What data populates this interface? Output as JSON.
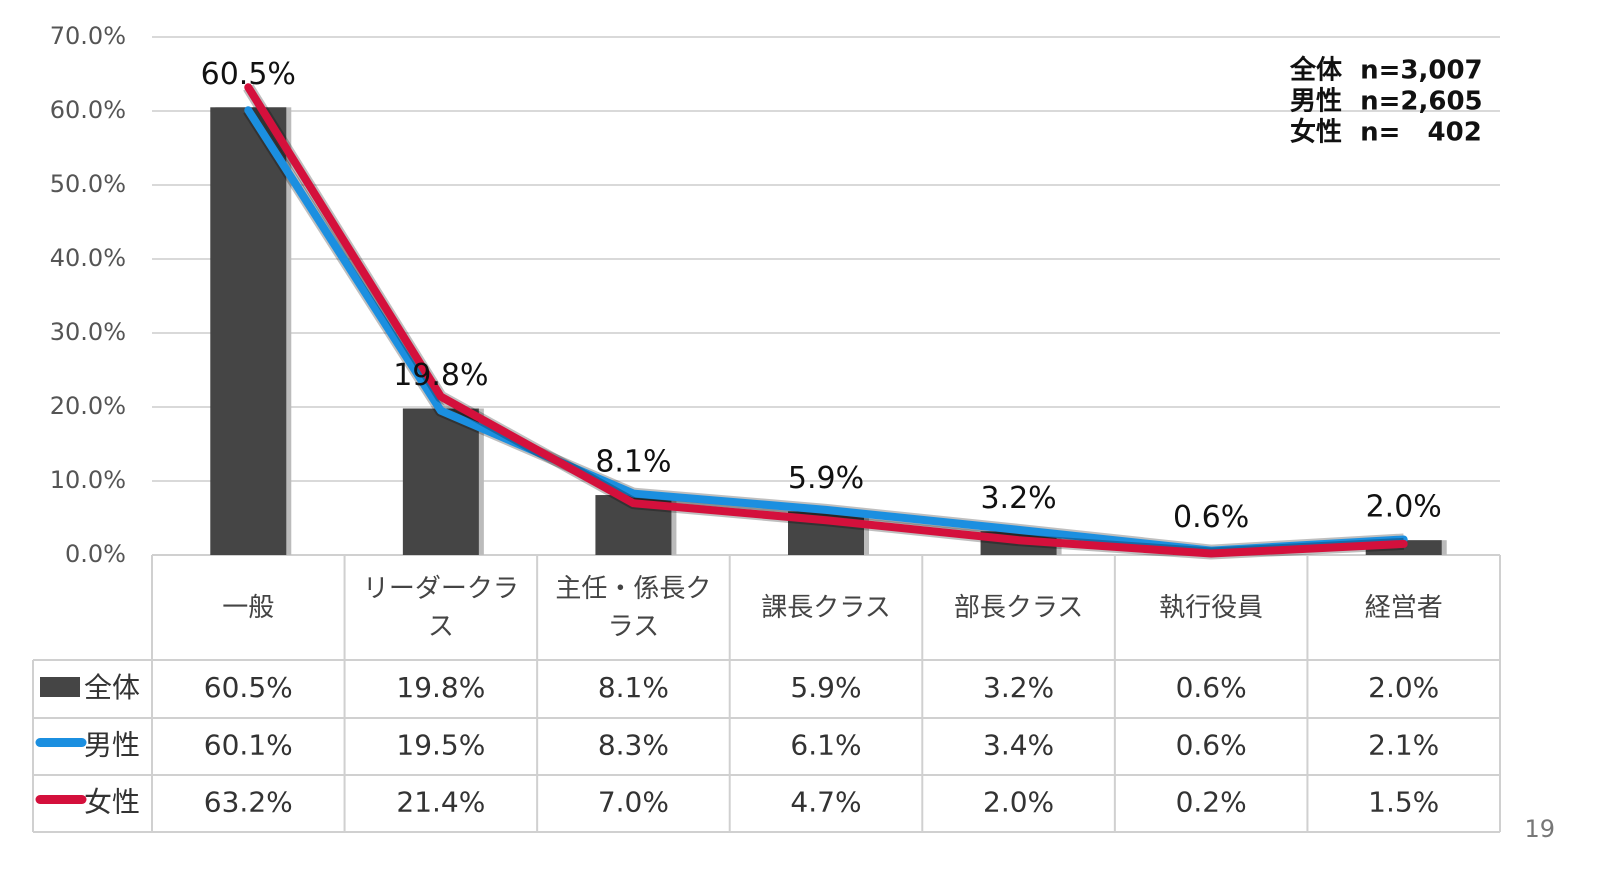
{
  "chart_data": {
    "type": "bar_line_table",
    "categories": [
      "一般",
      "リーダークラス",
      "主任・係長クラス",
      "課長クラス",
      "部長クラス",
      "執行役員",
      "経営者"
    ],
    "series": [
      {
        "name": "全体",
        "type": "bar",
        "color": "#454545",
        "values": [
          60.5,
          19.8,
          8.1,
          5.9,
          3.2,
          0.6,
          2.0
        ],
        "value_labels": [
          "60.5%",
          "19.8%",
          "8.1%",
          "5.9%",
          "3.2%",
          "0.6%",
          "2.0%"
        ]
      },
      {
        "name": "男性",
        "type": "line",
        "color": "#1b8fe0",
        "values": [
          60.1,
          19.5,
          8.3,
          6.1,
          3.4,
          0.6,
          2.1
        ],
        "value_labels": [
          "60.1%",
          "19.5%",
          "8.3%",
          "6.1%",
          "3.4%",
          "0.6%",
          "2.1%"
        ]
      },
      {
        "name": "女性",
        "type": "line",
        "color": "#d4103c",
        "values": [
          63.2,
          21.4,
          7.0,
          4.7,
          2.0,
          0.2,
          1.5
        ],
        "value_labels": [
          "63.2%",
          "21.4%",
          "7.0%",
          "4.7%",
          "2.0%",
          "0.2%",
          "1.5%"
        ]
      }
    ],
    "ylim": [
      0,
      70
    ],
    "yticks": [
      {
        "value": 0,
        "label": "0.0%"
      },
      {
        "value": 10,
        "label": "10.0%"
      },
      {
        "value": 20,
        "label": "20.0%"
      },
      {
        "value": 30,
        "label": "30.0%"
      },
      {
        "value": 40,
        "label": "40.0%"
      },
      {
        "value": 50,
        "label": "50.0%"
      },
      {
        "value": 60,
        "label": "60.0%"
      },
      {
        "value": 70,
        "label": "70.0%"
      }
    ],
    "grid": true,
    "annotations": [
      "全体  n=3,007",
      "男性  n=2,605",
      "女性  n=   402"
    ],
    "page_number": "19"
  }
}
